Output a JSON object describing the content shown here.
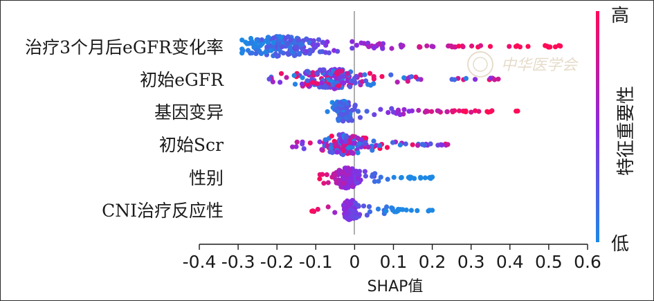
{
  "chart_data": {
    "type": "scatter",
    "subtype": "beeswarm",
    "features": [
      {
        "label": "治疗3个月后eGFR变化率",
        "x_min": -0.29,
        "x_max": 0.53,
        "center": -0.19,
        "spread": 0.16,
        "high_side": "right",
        "density": 230
      },
      {
        "label": "初始eGFR",
        "x_min": -0.22,
        "x_max": 0.37,
        "center": -0.06,
        "spread": 0.14,
        "high_side": "mixed",
        "density": 190
      },
      {
        "label": "基因变异",
        "x_min": -0.07,
        "x_max": 0.42,
        "center": -0.03,
        "spread": 0.03,
        "high_side": "right",
        "density": 150
      },
      {
        "label": "初始Scr",
        "x_min": -0.16,
        "x_max": 0.24,
        "center": -0.03,
        "spread": 0.1,
        "high_side": "mixed",
        "density": 170
      },
      {
        "label": "性别",
        "x_min": -0.09,
        "x_max": 0.2,
        "center": -0.02,
        "spread": 0.05,
        "high_side": "left",
        "density": 150
      },
      {
        "label": "CNI治疗反应性",
        "x_min": -0.11,
        "x_max": 0.2,
        "center": -0.01,
        "spread": 0.03,
        "high_side": "left",
        "density": 120
      }
    ],
    "x_ticks": [
      "-0.4",
      "-0.3",
      "-0.2",
      "-0.1",
      "0",
      "0.1",
      "0.2",
      "0.3",
      "0.4",
      "0.5",
      "0.6"
    ],
    "xlim": [
      -0.4,
      0.6
    ],
    "xlabel": "SHAP值",
    "colorbar": {
      "label": "特征重要性",
      "high": "高",
      "low": "低",
      "high_color": "#ff0a57",
      "low_color": "#1e88e5"
    },
    "zero_line": true,
    "grid": false
  },
  "watermark": {
    "text": "中华医学会"
  }
}
